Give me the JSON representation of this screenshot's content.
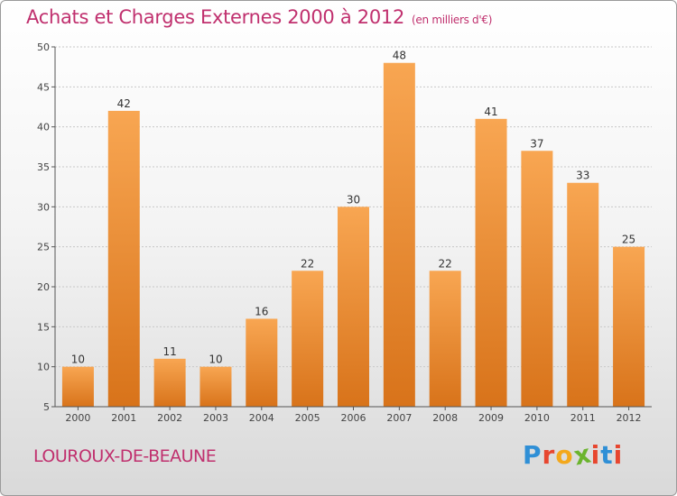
{
  "header": {
    "title": "Achats et Charges Externes 2000 à 2012",
    "unit": "(en milliers d'€)"
  },
  "footer": {
    "commune": "LOUROUX-DE-BEAUNE",
    "logo_text": "Proxiti"
  },
  "colors": {
    "bar_top": "#f8a652",
    "bar_bottom": "#d8731a",
    "title": "#c0306e",
    "logo": [
      "#2f8fd6",
      "#e7462f",
      "#f3a81c",
      "#6bb42e",
      "#e7462f",
      "#2f8fd6",
      "#e7462f"
    ]
  },
  "chart_data": {
    "type": "bar",
    "title": "Achats et Charges Externes 2000 à 2012",
    "unit": "(en milliers d'€)",
    "categories": [
      "2000",
      "2001",
      "2002",
      "2003",
      "2004",
      "2005",
      "2006",
      "2007",
      "2008",
      "2009",
      "2010",
      "2011",
      "2012"
    ],
    "values": [
      10,
      42,
      11,
      10,
      16,
      22,
      30,
      48,
      22,
      41,
      37,
      33,
      25
    ],
    "ylim": [
      5,
      50
    ],
    "yticks": [
      5,
      10,
      15,
      20,
      25,
      30,
      35,
      40,
      45,
      50
    ],
    "grid": true
  }
}
